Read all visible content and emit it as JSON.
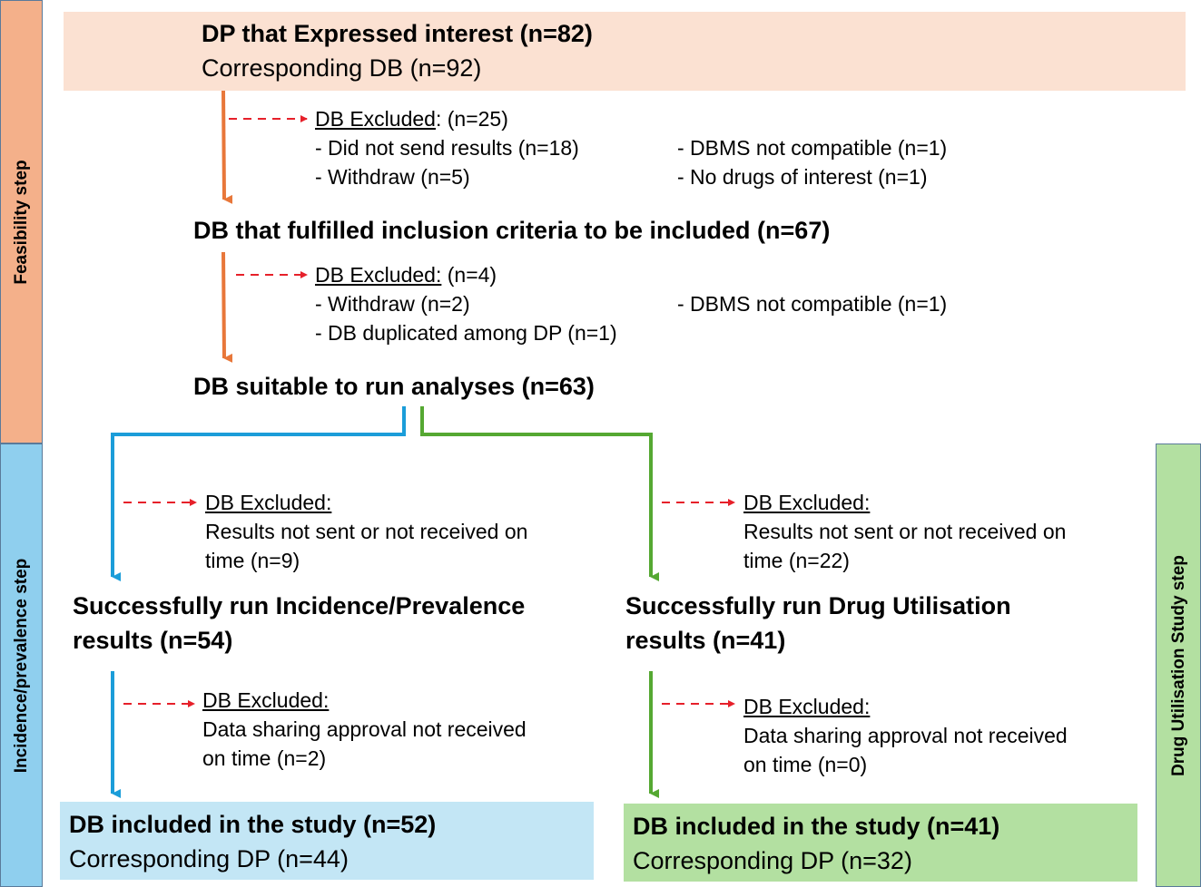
{
  "bands": {
    "feasibility": {
      "label": "Feasibility step",
      "color": "#f4b08a"
    },
    "incidence": {
      "label": "Incidence/prevalence step",
      "color": "#8fcfee"
    },
    "drug": {
      "label": "Drug Utilisation Study step",
      "color": "#b3e0a1"
    }
  },
  "top_box": {
    "title": "DP that Expressed interest  (n=82)",
    "subtitle": "Corresponding DB (n=92)",
    "color": "#fbe1d2"
  },
  "excl1": {
    "heading": "DB Excluded",
    "count": ": (n=25)",
    "items_left": [
      "- Did not send results (n=18)",
      "- Withdraw (n=5)"
    ],
    "items_right": [
      "- DBMS not compatible (n=1)",
      "- No drugs of interest (n=1)"
    ]
  },
  "step2": {
    "title": "DB that fulfilled inclusion criteria to be included (n=67)"
  },
  "excl2": {
    "heading": "DB Excluded:",
    "count": " (n=4)",
    "items_left": [
      "- Withdraw (n=2)",
      "- DB duplicated among DP (n=1)"
    ],
    "items_right": [
      "- DBMS not compatible (n=1)"
    ]
  },
  "step3": {
    "title": "DB suitable to run analyses (n=63)"
  },
  "inc_excl1": {
    "heading": "DB Excluded:",
    "lines": [
      "Results not sent or not received on",
      "time (n=9)"
    ]
  },
  "dus_excl1": {
    "heading": "DB Excluded:",
    "lines": [
      "Results not sent or not received on",
      "time (n=22)"
    ]
  },
  "inc_result": {
    "lines": [
      "Successfully run Incidence/Prevalence",
      "results (n=54)"
    ]
  },
  "dus_result": {
    "lines": [
      "Successfully run Drug Utilisation",
      "results (n=41)"
    ]
  },
  "inc_excl2": {
    "heading": "DB Excluded:",
    "lines": [
      "Data sharing approval not received",
      "on time (n=2)"
    ]
  },
  "dus_excl2": {
    "heading": "DB Excluded:",
    "lines": [
      "Data sharing approval not received",
      "on time (n=0)"
    ]
  },
  "inc_final": {
    "title": "DB included in the study (n=52)",
    "subtitle": "Corresponding DP (n=44)",
    "color": "#c3e6f5"
  },
  "dus_final": {
    "title": "DB included in the study (n=41)",
    "subtitle": "Corresponding DP (n=32)",
    "color": "#b3e0a1"
  },
  "colors": {
    "orange": "#e8773a",
    "blue": "#1b9dd9",
    "green": "#55a832",
    "red_dash": "#e6202a"
  }
}
